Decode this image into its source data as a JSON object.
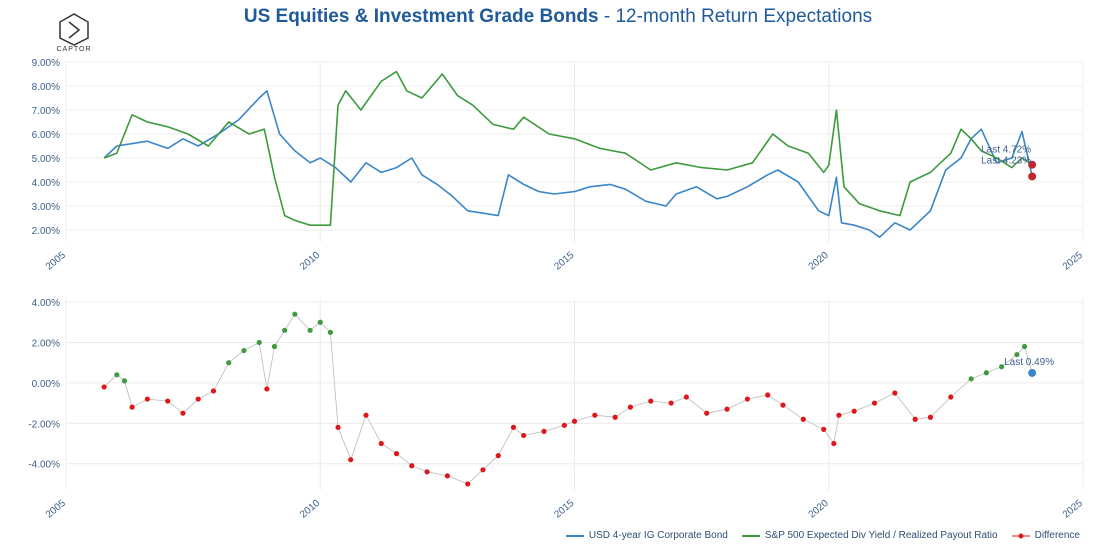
{
  "title": {
    "bold": "US Equities & Investment Grade Bonds",
    "rest": " - 12-month Return Expectations"
  },
  "logo": {
    "text": "CAPTOR"
  },
  "colors": {
    "bond": "#3a86c8",
    "equity": "#3d9a3d",
    "diff_neg": "#e0161b",
    "diff_pos": "#3d9a3d",
    "last_dot": "#c0272d",
    "axis_text": "#3e5f8a",
    "grid": "#ececec"
  },
  "chart_data": [
    {
      "type": "line",
      "x_ticks": [
        "2005",
        "2010",
        "2015",
        "2020",
        "2025"
      ],
      "y_ticks": [
        "2.00%",
        "3.00%",
        "4.00%",
        "5.00%",
        "6.00%",
        "7.00%",
        "8.00%",
        "9.00%"
      ],
      "xlim": [
        2005,
        2025
      ],
      "ylim": [
        1.5,
        9.0
      ],
      "series": [
        {
          "name": "USD 4-year IG Corporate Bond",
          "x": [
            2005.75,
            2006.0,
            2006.3,
            2006.6,
            2007.0,
            2007.3,
            2007.6,
            2008.0,
            2008.4,
            2008.8,
            2008.95,
            2009.2,
            2009.5,
            2009.8,
            2010.0,
            2010.3,
            2010.6,
            2010.9,
            2011.2,
            2011.5,
            2011.8,
            2012.0,
            2012.3,
            2012.6,
            2012.9,
            2013.2,
            2013.5,
            2013.7,
            2014.0,
            2014.3,
            2014.6,
            2015.0,
            2015.3,
            2015.7,
            2016.0,
            2016.4,
            2016.8,
            2017.0,
            2017.4,
            2017.8,
            2018.0,
            2018.4,
            2018.8,
            2019.0,
            2019.4,
            2019.8,
            2020.0,
            2020.15,
            2020.25,
            2020.5,
            2020.8,
            2021.0,
            2021.3,
            2021.6,
            2022.0,
            2022.3,
            2022.6,
            2022.8,
            2023.0,
            2023.3,
            2023.6,
            2023.8,
            2024.0
          ],
          "y": [
            5.0,
            5.5,
            5.6,
            5.7,
            5.4,
            5.8,
            5.5,
            6.0,
            6.6,
            7.5,
            7.8,
            6.0,
            5.3,
            4.8,
            5.0,
            4.6,
            4.0,
            4.8,
            4.4,
            4.6,
            5.0,
            4.3,
            3.9,
            3.4,
            2.8,
            2.7,
            2.6,
            4.3,
            3.9,
            3.6,
            3.5,
            3.6,
            3.8,
            3.9,
            3.7,
            3.2,
            3.0,
            3.5,
            3.8,
            3.3,
            3.4,
            3.8,
            4.3,
            4.5,
            4.0,
            2.8,
            2.6,
            4.2,
            2.3,
            2.2,
            2.0,
            1.7,
            2.3,
            2.0,
            2.8,
            4.5,
            5.0,
            5.8,
            6.2,
            4.8,
            5.0,
            6.1,
            4.23
          ]
        },
        {
          "name": "S&P 500 Expected Div Yield / Realized Payout Ratio",
          "x": [
            2005.75,
            2006.0,
            2006.3,
            2006.6,
            2007.0,
            2007.4,
            2007.8,
            2008.2,
            2008.6,
            2008.9,
            2009.1,
            2009.3,
            2009.5,
            2009.8,
            2010.2,
            2010.35,
            2010.5,
            2010.8,
            2011.2,
            2011.5,
            2011.7,
            2012.0,
            2012.4,
            2012.7,
            2013.0,
            2013.4,
            2013.8,
            2014.0,
            2014.5,
            2015.0,
            2015.5,
            2016.0,
            2016.5,
            2017.0,
            2017.5,
            2018.0,
            2018.5,
            2018.9,
            2019.2,
            2019.6,
            2019.9,
            2020.0,
            2020.15,
            2020.3,
            2020.6,
            2021.0,
            2021.4,
            2021.6,
            2022.0,
            2022.4,
            2022.6,
            2022.8,
            2023.0,
            2023.3,
            2023.6,
            2023.8,
            2024.0
          ],
          "y": [
            5.0,
            5.2,
            6.8,
            6.5,
            6.3,
            6.0,
            5.5,
            6.5,
            6.0,
            6.2,
            4.2,
            2.6,
            2.4,
            2.2,
            2.2,
            7.2,
            7.8,
            7.0,
            8.2,
            8.6,
            7.8,
            7.5,
            8.5,
            7.6,
            7.2,
            6.4,
            6.2,
            6.7,
            6.0,
            5.8,
            5.4,
            5.2,
            4.5,
            4.8,
            4.6,
            4.5,
            4.8,
            6.0,
            5.5,
            5.2,
            4.4,
            4.7,
            7.0,
            3.8,
            3.1,
            2.8,
            2.6,
            4.0,
            4.4,
            5.2,
            6.2,
            5.8,
            5.3,
            5.0,
            4.6,
            5.0,
            4.72
          ]
        }
      ],
      "annotations": [
        "Last 4.72%",
        "Last 4.23%"
      ]
    },
    {
      "type": "scatter",
      "x_ticks": [
        "2005",
        "2010",
        "2015",
        "2020",
        "2025"
      ],
      "y_ticks": [
        "-4.00%",
        "-2.00%",
        "0.00%",
        "2.00%",
        "4.00%"
      ],
      "xlim": [
        2005,
        2025
      ],
      "ylim": [
        -5.3,
        4.2
      ],
      "series": [
        {
          "name": "Difference",
          "x": [
            2005.75,
            2006.0,
            2006.15,
            2006.3,
            2006.6,
            2007.0,
            2007.3,
            2007.6,
            2007.9,
            2008.2,
            2008.5,
            2008.8,
            2008.95,
            2009.1,
            2009.3,
            2009.5,
            2009.8,
            2010.0,
            2010.2,
            2010.35,
            2010.6,
            2010.9,
            2011.2,
            2011.5,
            2011.8,
            2012.1,
            2012.5,
            2012.9,
            2013.2,
            2013.5,
            2013.8,
            2014.0,
            2014.4,
            2014.8,
            2015.0,
            2015.4,
            2015.8,
            2016.1,
            2016.5,
            2016.9,
            2017.2,
            2017.6,
            2018.0,
            2018.4,
            2018.8,
            2019.1,
            2019.5,
            2019.9,
            2020.1,
            2020.2,
            2020.5,
            2020.9,
            2021.3,
            2021.7,
            2022.0,
            2022.4,
            2022.8,
            2023.1,
            2023.4,
            2023.7,
            2023.85,
            2024.0
          ],
          "y": [
            -0.2,
            0.4,
            0.1,
            -1.2,
            -0.8,
            -0.9,
            -1.5,
            -0.8,
            -0.4,
            1.0,
            1.6,
            2.0,
            -0.3,
            1.8,
            2.6,
            3.4,
            2.6,
            3.0,
            2.5,
            -2.2,
            -3.8,
            -1.6,
            -3.0,
            -3.5,
            -4.1,
            -4.4,
            -4.6,
            -5.0,
            -4.3,
            -3.6,
            -2.2,
            -2.6,
            -2.4,
            -2.1,
            -1.9,
            -1.6,
            -1.7,
            -1.2,
            -0.9,
            -1.0,
            -0.7,
            -1.5,
            -1.3,
            -0.8,
            -0.6,
            -1.1,
            -1.8,
            -2.3,
            -3.0,
            -1.6,
            -1.4,
            -1.0,
            -0.5,
            -1.8,
            -1.7,
            -0.7,
            0.2,
            0.5,
            0.8,
            1.4,
            1.8,
            0.49
          ]
        }
      ],
      "annotations": [
        "Last 0.49%"
      ]
    }
  ],
  "legend": [
    {
      "label": "USD 4-year IG Corporate Bond",
      "style": "line",
      "color": "#3a86c8"
    },
    {
      "label": "S&P 500 Expected Div Yield / Realized Payout Ratio",
      "style": "line",
      "color": "#3d9a3d"
    },
    {
      "label": "Difference",
      "style": "dots",
      "color": "#e0161b"
    }
  ]
}
